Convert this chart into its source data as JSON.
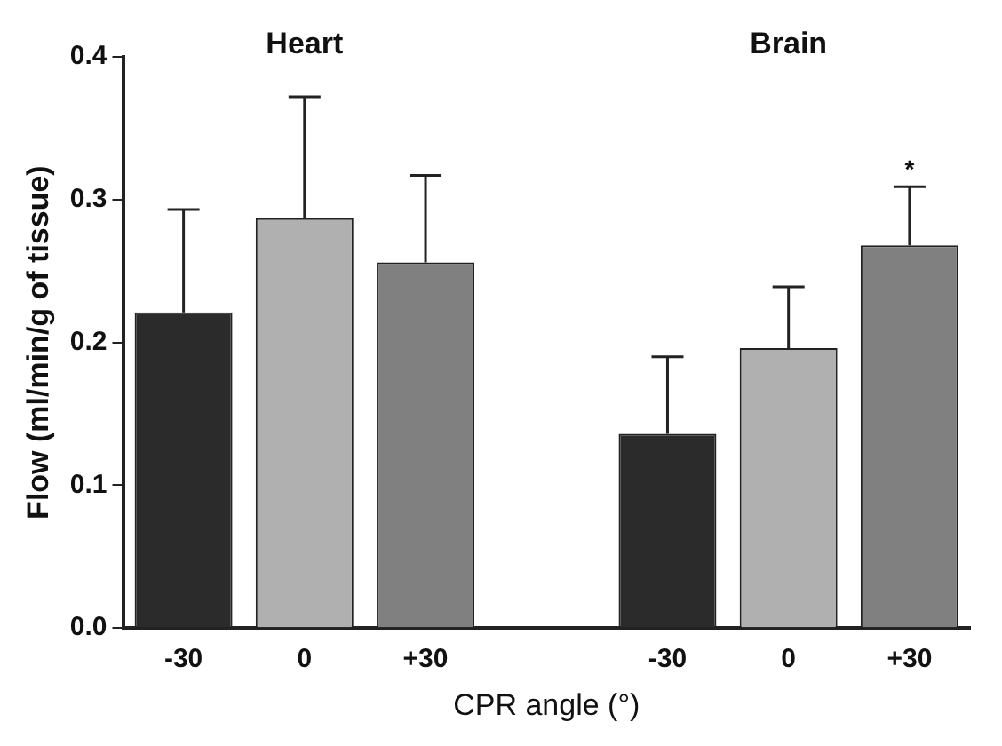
{
  "chart_data": {
    "type": "bar",
    "xlabel": "CPR angle (°)",
    "ylabel": "Flow (ml/min/g of tissue)",
    "categories": [
      "-30",
      "0",
      "+30",
      null,
      "-30",
      "0",
      "+30"
    ],
    "values": [
      0.221,
      0.287,
      0.256,
      null,
      0.136,
      0.196,
      0.268
    ],
    "colors": [
      "#2b2b2b",
      "#b0b0b0",
      "#808080",
      "#ffffff",
      "#2b2b2b",
      "#b0b0b0",
      "#808080"
    ],
    "errors": [
      [
        0.221,
        0.293
      ],
      [
        0.287,
        0.372
      ],
      [
        0.256,
        0.317
      ],
      null,
      [
        0.136,
        0.19
      ],
      [
        0.196,
        0.239
      ],
      [
        0.268,
        0.309
      ]
    ],
    "ylim": [
      0,
      0.4
    ],
    "yticks": [
      {
        "value": 0,
        "label": "0.0"
      },
      {
        "value": 0.1,
        "label": "0.1"
      },
      {
        "value": 0.2,
        "label": "0.2"
      },
      {
        "value": 0.3,
        "label": "0.3"
      },
      {
        "value": 0.4,
        "label": "0.4"
      }
    ],
    "grid": false,
    "legend": false,
    "annotations": [
      "Heart",
      "Brain",
      "*"
    ]
  }
}
